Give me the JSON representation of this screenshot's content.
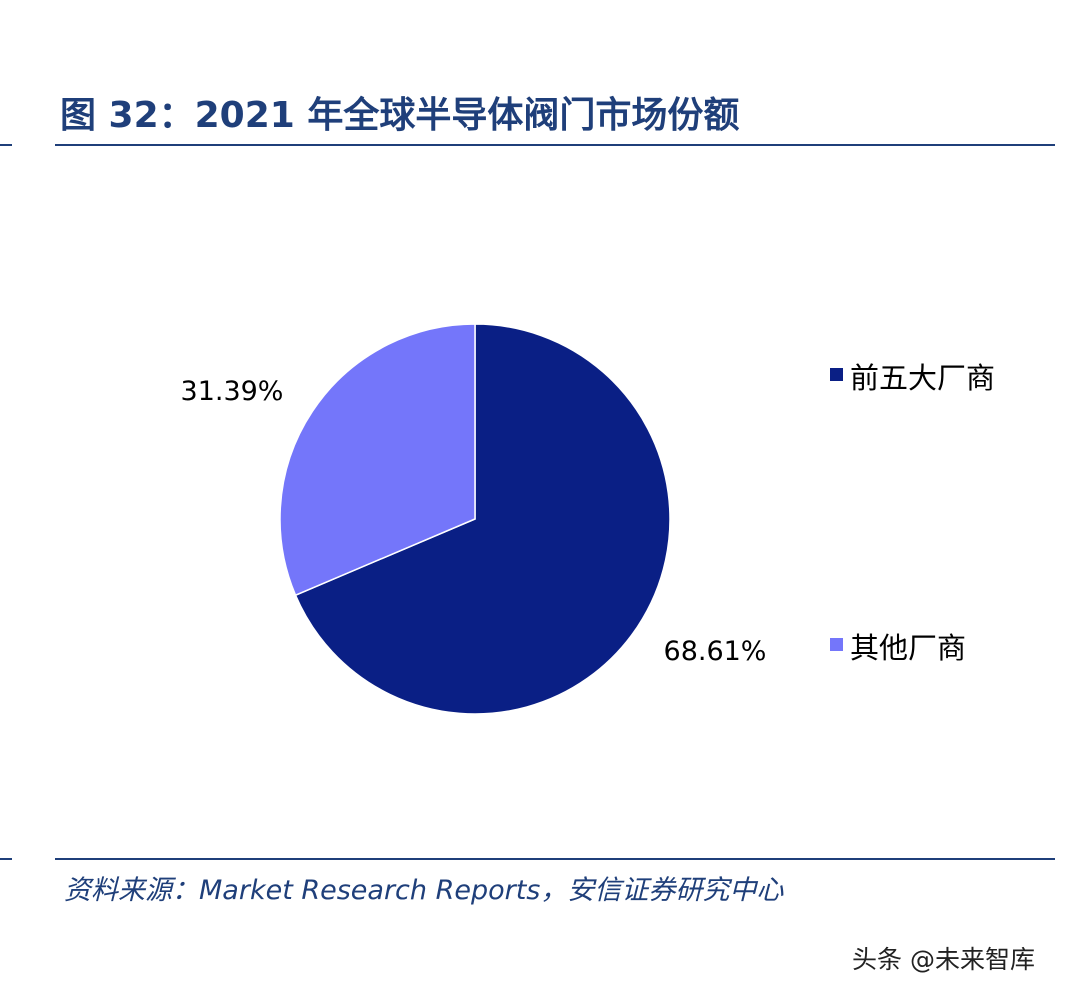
{
  "header": {
    "title": "图 32：2021 年全球半导体阀门市场份额"
  },
  "footer": {
    "source": "资料来源：Market Research Reports，安信证券研究中心",
    "watermark": "头条 @未来智库"
  },
  "chart_data": {
    "type": "pie",
    "title": "图 32：2021 年全球半导体阀门市场份额",
    "legend_placement": "right",
    "categories": [
      "前五大厂商",
      "其他厂商"
    ],
    "values": [
      68.61,
      31.39
    ],
    "labels": [
      "68.61%",
      "31.39%"
    ],
    "colors": [
      "#0a1f85",
      "#7476fa"
    ]
  }
}
